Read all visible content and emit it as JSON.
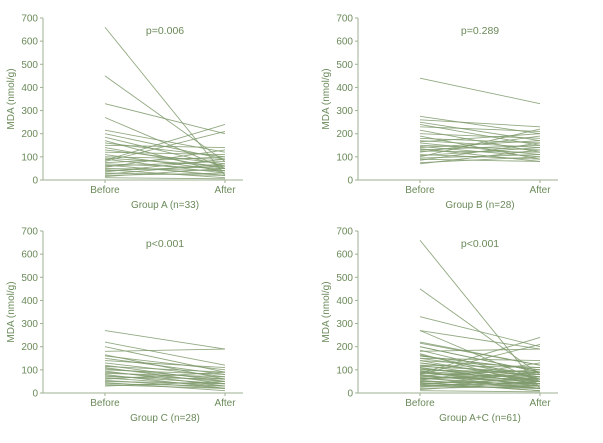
{
  "chart_data": [
    {
      "type": "line",
      "panel": "top-left",
      "ylabel": "MDA (nmol/g)",
      "xlabel": "Group A (n=33)",
      "categories": [
        "Before",
        "After"
      ],
      "yticks": [
        0,
        100,
        200,
        300,
        400,
        500,
        600,
        700
      ],
      "ylim": [
        0,
        700
      ],
      "annotation": "p=0.006",
      "grid": false,
      "series": [
        {
          "values": [
            660,
            20
          ]
        },
        {
          "values": [
            450,
            80
          ]
        },
        {
          "values": [
            330,
            200
          ]
        },
        {
          "values": [
            270,
            50
          ]
        },
        {
          "values": [
            215,
            120
          ]
        },
        {
          "values": [
            200,
            90
          ]
        },
        {
          "values": [
            185,
            60
          ]
        },
        {
          "values": [
            170,
            30
          ]
        },
        {
          "values": [
            160,
            100
          ]
        },
        {
          "values": [
            150,
            140
          ]
        },
        {
          "values": [
            140,
            50
          ]
        },
        {
          "values": [
            130,
            70
          ]
        },
        {
          "values": [
            120,
            110
          ]
        },
        {
          "values": [
            110,
            40
          ]
        },
        {
          "values": [
            100,
            90
          ]
        },
        {
          "values": [
            95,
            60
          ]
        },
        {
          "values": [
            90,
            30
          ]
        },
        {
          "values": [
            85,
            240
          ]
        },
        {
          "values": [
            80,
            210
          ]
        },
        {
          "values": [
            75,
            100
          ]
        },
        {
          "values": [
            70,
            50
          ]
        },
        {
          "values": [
            65,
            20
          ]
        },
        {
          "values": [
            60,
            80
          ]
        },
        {
          "values": [
            55,
            130
          ]
        },
        {
          "values": [
            50,
            40
          ]
        },
        {
          "values": [
            45,
            10
          ]
        },
        {
          "values": [
            40,
            60
          ]
        },
        {
          "values": [
            35,
            90
          ]
        },
        {
          "values": [
            30,
            20
          ]
        },
        {
          "values": [
            25,
            70
          ]
        },
        {
          "values": [
            20,
            30
          ]
        },
        {
          "values": [
            15,
            50
          ]
        },
        {
          "values": [
            10,
            5
          ]
        }
      ]
    },
    {
      "type": "line",
      "panel": "top-right",
      "ylabel": "MDA (nmol/g)",
      "xlabel": "Group B (n=28)",
      "categories": [
        "Before",
        "After"
      ],
      "yticks": [
        0,
        100,
        200,
        300,
        400,
        500,
        600,
        700
      ],
      "ylim": [
        0,
        700
      ],
      "annotation": "p=0.289",
      "grid": false,
      "series": [
        {
          "values": [
            440,
            330
          ]
        },
        {
          "values": [
            275,
            200
          ]
        },
        {
          "values": [
            260,
            230
          ]
        },
        {
          "values": [
            250,
            170
          ]
        },
        {
          "values": [
            240,
            150
          ]
        },
        {
          "values": [
            230,
            210
          ]
        },
        {
          "values": [
            215,
            120
          ]
        },
        {
          "values": [
            200,
            180
          ]
        },
        {
          "values": [
            190,
            90
          ]
        },
        {
          "values": [
            180,
            160
          ]
        },
        {
          "values": [
            170,
            140
          ]
        },
        {
          "values": [
            165,
            200
          ]
        },
        {
          "values": [
            160,
            110
          ]
        },
        {
          "values": [
            150,
            130
          ]
        },
        {
          "values": [
            145,
            100
          ]
        },
        {
          "values": [
            140,
            170
          ]
        },
        {
          "values": [
            135,
            80
          ]
        },
        {
          "values": [
            130,
            150
          ]
        },
        {
          "values": [
            125,
            120
          ]
        },
        {
          "values": [
            120,
            190
          ]
        },
        {
          "values": [
            110,
            90
          ]
        },
        {
          "values": [
            105,
            140
          ]
        },
        {
          "values": [
            100,
            220
          ]
        },
        {
          "values": [
            95,
            110
          ]
        },
        {
          "values": [
            90,
            80
          ]
        },
        {
          "values": [
            85,
            160
          ]
        },
        {
          "values": [
            75,
            100
          ]
        },
        {
          "values": [
            70,
            130
          ]
        }
      ]
    },
    {
      "type": "line",
      "panel": "bottom-left",
      "ylabel": "MDA (nmol/g)",
      "xlabel": "Group C (n=28)",
      "categories": [
        "Before",
        "After"
      ],
      "yticks": [
        0,
        100,
        200,
        300,
        400,
        500,
        600,
        700
      ],
      "ylim": [
        0,
        700
      ],
      "annotation": "p<0.001",
      "grid": false,
      "series": [
        {
          "values": [
            270,
            190
          ]
        },
        {
          "values": [
            220,
            120
          ]
        },
        {
          "values": [
            200,
            90
          ]
        },
        {
          "values": [
            180,
            190
          ]
        },
        {
          "values": [
            165,
            60
          ]
        },
        {
          "values": [
            160,
            100
          ]
        },
        {
          "values": [
            150,
            80
          ]
        },
        {
          "values": [
            140,
            110
          ]
        },
        {
          "values": [
            130,
            70
          ]
        },
        {
          "values": [
            120,
            50
          ]
        },
        {
          "values": [
            115,
            90
          ]
        },
        {
          "values": [
            110,
            40
          ]
        },
        {
          "values": [
            105,
            60
          ]
        },
        {
          "values": [
            100,
            80
          ]
        },
        {
          "values": [
            95,
            30
          ]
        },
        {
          "values": [
            90,
            50
          ]
        },
        {
          "values": [
            85,
            70
          ]
        },
        {
          "values": [
            80,
            20
          ]
        },
        {
          "values": [
            75,
            40
          ]
        },
        {
          "values": [
            70,
            60
          ]
        },
        {
          "values": [
            65,
            30
          ]
        },
        {
          "values": [
            60,
            90
          ]
        },
        {
          "values": [
            55,
            20
          ]
        },
        {
          "values": [
            50,
            40
          ]
        },
        {
          "values": [
            45,
            10
          ]
        },
        {
          "values": [
            40,
            30
          ]
        },
        {
          "values": [
            35,
            20
          ]
        },
        {
          "values": [
            30,
            50
          ]
        }
      ]
    },
    {
      "type": "line",
      "panel": "bottom-right",
      "ylabel": "MDA (nmol/g)",
      "xlabel": "Group A+C (n=61)",
      "categories": [
        "Before",
        "After"
      ],
      "yticks": [
        0,
        100,
        200,
        300,
        400,
        500,
        600,
        700
      ],
      "ylim": [
        0,
        700
      ],
      "annotation": "p<0.001",
      "grid": false,
      "series": [
        {
          "values": [
            660,
            20
          ]
        },
        {
          "values": [
            450,
            80
          ]
        },
        {
          "values": [
            330,
            200
          ]
        },
        {
          "values": [
            270,
            50
          ]
        },
        {
          "values": [
            270,
            190
          ]
        },
        {
          "values": [
            220,
            120
          ]
        },
        {
          "values": [
            215,
            120
          ]
        },
        {
          "values": [
            200,
            90
          ]
        },
        {
          "values": [
            200,
            90
          ]
        },
        {
          "values": [
            185,
            60
          ]
        },
        {
          "values": [
            180,
            190
          ]
        },
        {
          "values": [
            170,
            30
          ]
        },
        {
          "values": [
            165,
            60
          ]
        },
        {
          "values": [
            160,
            100
          ]
        },
        {
          "values": [
            160,
            100
          ]
        },
        {
          "values": [
            150,
            140
          ]
        },
        {
          "values": [
            150,
            80
          ]
        },
        {
          "values": [
            140,
            50
          ]
        },
        {
          "values": [
            140,
            110
          ]
        },
        {
          "values": [
            130,
            70
          ]
        },
        {
          "values": [
            130,
            70
          ]
        },
        {
          "values": [
            120,
            110
          ]
        },
        {
          "values": [
            120,
            50
          ]
        },
        {
          "values": [
            115,
            90
          ]
        },
        {
          "values": [
            110,
            40
          ]
        },
        {
          "values": [
            110,
            40
          ]
        },
        {
          "values": [
            105,
            60
          ]
        },
        {
          "values": [
            100,
            90
          ]
        },
        {
          "values": [
            100,
            80
          ]
        },
        {
          "values": [
            95,
            60
          ]
        },
        {
          "values": [
            95,
            30
          ]
        },
        {
          "values": [
            90,
            30
          ]
        },
        {
          "values": [
            90,
            50
          ]
        },
        {
          "values": [
            85,
            240
          ]
        },
        {
          "values": [
            85,
            70
          ]
        },
        {
          "values": [
            80,
            210
          ]
        },
        {
          "values": [
            80,
            20
          ]
        },
        {
          "values": [
            75,
            100
          ]
        },
        {
          "values": [
            75,
            40
          ]
        },
        {
          "values": [
            70,
            50
          ]
        },
        {
          "values": [
            70,
            60
          ]
        },
        {
          "values": [
            65,
            20
          ]
        },
        {
          "values": [
            65,
            30
          ]
        },
        {
          "values": [
            60,
            80
          ]
        },
        {
          "values": [
            60,
            90
          ]
        },
        {
          "values": [
            55,
            130
          ]
        },
        {
          "values": [
            55,
            20
          ]
        },
        {
          "values": [
            50,
            40
          ]
        },
        {
          "values": [
            50,
            40
          ]
        },
        {
          "values": [
            45,
            10
          ]
        },
        {
          "values": [
            45,
            10
          ]
        },
        {
          "values": [
            40,
            60
          ]
        },
        {
          "values": [
            40,
            30
          ]
        },
        {
          "values": [
            35,
            90
          ]
        },
        {
          "values": [
            35,
            20
          ]
        },
        {
          "values": [
            30,
            20
          ]
        },
        {
          "values": [
            30,
            50
          ]
        },
        {
          "values": [
            25,
            70
          ]
        },
        {
          "values": [
            20,
            30
          ]
        },
        {
          "values": [
            15,
            50
          ]
        },
        {
          "values": [
            10,
            5
          ]
        }
      ]
    }
  ]
}
